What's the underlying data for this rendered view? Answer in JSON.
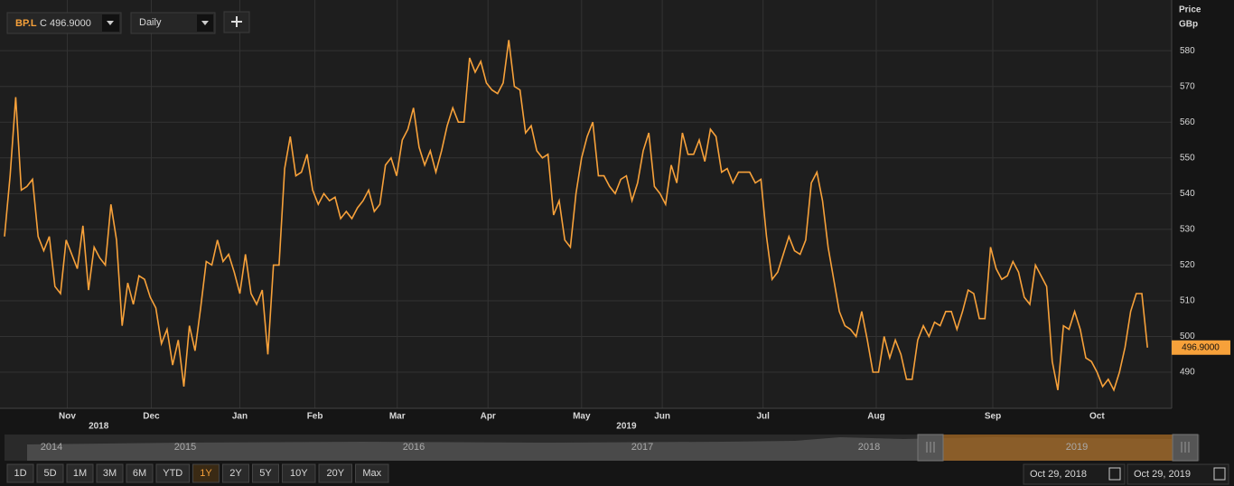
{
  "toolbar": {
    "symbol": "BP.L",
    "quote": "C 496.9000",
    "interval": "Daily"
  },
  "chart_data": {
    "type": "line",
    "axis_title": [
      "Price",
      "GBp"
    ],
    "series": [
      {
        "name": "BP.L",
        "color": "#f7a13a",
        "values": [
          528,
          545,
          567,
          541,
          542,
          544,
          528,
          524,
          528,
          514,
          512,
          527,
          523,
          519,
          531,
          513,
          525,
          522,
          520,
          537,
          527,
          503,
          515,
          509,
          517,
          516,
          511,
          508,
          498,
          502,
          492,
          499,
          486,
          503,
          496,
          508,
          521,
          520,
          527,
          521,
          523,
          518,
          512,
          523,
          512,
          509,
          513,
          495,
          520,
          520,
          547,
          556,
          545,
          546,
          551,
          541,
          537,
          540,
          538,
          539,
          533,
          535,
          533,
          536,
          538,
          541,
          535,
          537,
          548,
          550,
          545,
          555,
          558,
          564,
          553,
          548,
          552,
          546,
          552,
          559,
          564,
          560,
          560,
          578,
          574,
          577,
          571,
          569,
          568,
          571,
          583,
          570,
          569,
          557,
          559,
          552,
          550,
          551,
          534,
          538,
          527,
          525,
          540,
          550,
          556,
          560,
          545,
          545,
          542,
          540,
          544,
          545,
          538,
          543,
          552,
          557,
          542,
          540,
          537,
          548,
          543,
          557,
          551,
          551,
          555,
          549,
          558,
          556,
          546,
          547,
          543,
          546,
          546,
          546,
          543,
          544,
          528,
          516,
          518,
          523,
          528,
          524,
          523,
          527,
          543,
          546,
          538,
          525,
          516,
          507,
          503,
          502,
          500,
          507,
          499,
          490,
          490,
          500,
          494,
          499,
          495,
          488,
          488,
          499,
          503,
          500,
          504,
          503,
          507,
          507,
          502,
          507,
          513,
          512,
          505,
          505,
          525,
          519,
          516,
          517,
          521,
          518,
          511,
          509,
          520,
          517,
          514,
          493,
          485,
          503,
          502,
          507,
          502,
          494,
          493,
          490,
          486,
          488,
          485,
          490,
          497,
          507,
          512,
          512,
          496.9
        ]
      }
    ],
    "last_value_label": "496.9000",
    "xlim": [
      0,
      208
    ],
    "xticks": [
      {
        "value": 11.2,
        "label": "Nov"
      },
      {
        "value": 26.2,
        "label": "Dec"
      },
      {
        "value": 42,
        "label": "Jan"
      },
      {
        "value": 55.4,
        "label": "Feb"
      },
      {
        "value": 70.1,
        "label": "Mar"
      },
      {
        "value": 86.3,
        "label": "Apr"
      },
      {
        "value": 103,
        "label": "May"
      },
      {
        "value": 117.4,
        "label": "Jun"
      },
      {
        "value": 135.4,
        "label": "Jul"
      },
      {
        "value": 155.6,
        "label": "Aug"
      },
      {
        "value": 176.4,
        "label": "Sep"
      },
      {
        "value": 195,
        "label": "Oct"
      }
    ],
    "year_ticks": [
      {
        "value": 16.8,
        "label": "2018"
      },
      {
        "value": 111,
        "label": "2019"
      }
    ],
    "ylim": [
      480.4,
      594.2
    ],
    "yticks": [
      490,
      500,
      510,
      520,
      530,
      540,
      550,
      560,
      570,
      580
    ],
    "grid": true
  },
  "navigator": {
    "years": [
      "2014",
      "2015",
      "2016",
      "2017",
      "2018",
      "2019"
    ]
  },
  "range_buttons": [
    "1D",
    "5D",
    "1M",
    "3M",
    "6M",
    "YTD",
    "1Y",
    "2Y",
    "5Y",
    "10Y",
    "20Y",
    "Max"
  ],
  "date_range": [
    "Oct 29, 2018",
    "Oct 29, 2019"
  ]
}
